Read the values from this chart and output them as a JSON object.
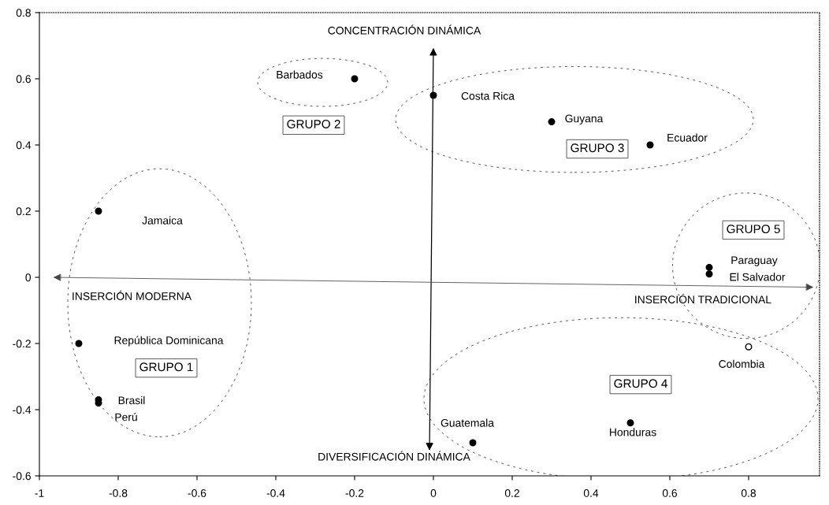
{
  "chart_data": {
    "type": "scatter",
    "x": [
      -0.2,
      0,
      0.3,
      0.55,
      -0.85,
      -0.9,
      -0.85,
      -0.85,
      0.7,
      0.7,
      0.8,
      0.5,
      0.1
    ],
    "series": [
      {
        "color": "#000000",
        "colors": [
          "#000000",
          "#000000",
          "#000000",
          "#000000",
          "#000000",
          "#000000",
          "#000000",
          "#000000",
          "#000000",
          "#000000",
          "#ffffff",
          "#000000",
          "#000000"
        ],
        "values": [
          0.6,
          0.55,
          0.47,
          0.4,
          0.2,
          -0.2,
          -0.37,
          -0.38,
          0.03,
          0.01,
          -0.21,
          -0.44,
          -0.5
        ]
      }
    ],
    "marker": "circle",
    "xlim": [
      -1,
      0.98
    ],
    "ylim": [
      -0.6,
      0.8
    ],
    "xticks": [
      -1,
      -0.8,
      -0.6,
      -0.4,
      -0.2,
      0,
      0.2,
      0.4,
      0.6,
      0.8
    ],
    "yticks": [
      -0.6,
      -0.4,
      -0.2,
      0,
      0.2,
      0.4,
      0.6,
      0.8
    ],
    "grid": false,
    "annotations": [
      {
        "text": "Barbados",
        "x": -0.2,
        "y": 0.6
      },
      {
        "text": "Costa Rica",
        "x": 0,
        "y": 0.55
      },
      {
        "text": "Guyana",
        "x": 0.3,
        "y": 0.47
      },
      {
        "text": "Ecuador",
        "x": 0.55,
        "y": 0.4
      },
      "Jamaica",
      "República Dominicana",
      {
        "text": "Brasil",
        "x": -0.85,
        "y": -0.37
      },
      {
        "text": "Perú",
        "x": -0.85,
        "y": -0.38
      },
      {
        "text": "Paraguay",
        "x": 0.7,
        "y": 0.03
      },
      {
        "text": "El Salvador",
        "x": 0.7,
        "y": 0.01
      },
      {
        "text": "Colombia",
        "x": 0.8,
        "y": -0.21
      },
      {
        "text": "Honduras",
        "x": 0.5,
        "y": -0.44
      },
      {
        "text": "Guatemala",
        "x": 0.1,
        "y": -0.5
      },
      "CONCENTRACIÓN DINÁMICA",
      "DIVERSIFICACIÓN DINÁMICA",
      "INSERCIÓN MODERNA",
      "INSERCIÓN TRADICIONAL",
      "GRUPO 1",
      "GRUPO 2",
      "GRUPO 3",
      "GRUPO 4",
      "GRUPO 5"
    ]
  }
}
